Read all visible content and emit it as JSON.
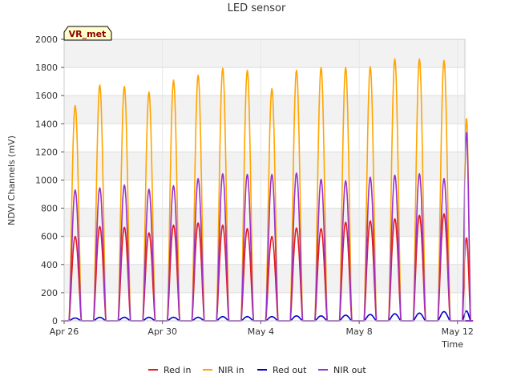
{
  "chart_data": {
    "type": "line",
    "title": "LED sensor",
    "xlabel": "Time",
    "ylabel": "NDVI Channels (mV)",
    "badge": "VR_met",
    "xlim": [
      0,
      16.3
    ],
    "ylim": [
      0,
      2000
    ],
    "yticks": [
      0,
      200,
      400,
      600,
      800,
      1000,
      1200,
      1400,
      1600,
      1800,
      2000
    ],
    "xticks": [
      {
        "value": 0,
        "label": "Apr 26"
      },
      {
        "value": 4,
        "label": "Apr 30"
      },
      {
        "value": 8,
        "label": "May 4"
      },
      {
        "value": 12,
        "label": "May 8"
      },
      {
        "value": 16,
        "label": "May 12"
      }
    ],
    "x_unit": "days since Apr 26",
    "grid": true,
    "legend_position": "bottom",
    "peak_days": [
      0.45,
      1.45,
      2.45,
      3.45,
      4.45,
      5.45,
      6.45,
      7.45,
      8.45,
      9.45,
      10.45,
      11.45,
      12.45,
      13.45,
      14.45,
      15.45
    ],
    "day_window": [
      0.2,
      0.7
    ],
    "series": [
      {
        "name": "Red in",
        "color": "#e41a1c",
        "peaks": [
          600,
          670,
          665,
          625,
          680,
          695,
          680,
          655,
          600,
          660,
          655,
          700,
          710,
          725,
          750,
          760
        ],
        "partial_last": 590
      },
      {
        "name": "NIR in",
        "color": "#ffa500",
        "peaks": [
          1530,
          1675,
          1665,
          1625,
          1710,
          1745,
          1795,
          1780,
          1650,
          1780,
          1800,
          1800,
          1805,
          1860,
          1860,
          1850
        ],
        "partial_last": 1440
      },
      {
        "name": "Red out",
        "color": "#0000cd",
        "peaks": [
          20,
          25,
          25,
          25,
          25,
          25,
          30,
          30,
          30,
          35,
          35,
          40,
          45,
          50,
          55,
          65
        ],
        "partial_last": 70
      },
      {
        "name": "NIR out",
        "color": "#9932cc",
        "peaks": [
          930,
          945,
          965,
          935,
          960,
          1010,
          1045,
          1040,
          1040,
          1050,
          1005,
          995,
          1020,
          1035,
          1045,
          1010
        ],
        "partial_last": 1340
      }
    ]
  }
}
